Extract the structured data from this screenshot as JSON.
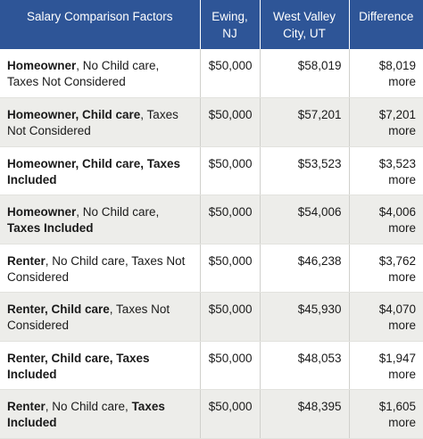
{
  "header": {
    "factors": "Salary Comparison Factors",
    "city1_line1": "Ewing,",
    "city1_line2": "NJ",
    "city2_line1": "West Valley",
    "city2_line2": "City, UT",
    "difference": "Difference"
  },
  "rows": [
    {
      "f1": "Homeowner",
      "f2": ", No Child care, Taxes Not Considered",
      "f2_bold": false,
      "f3": "",
      "f3_bold": false,
      "city1": "$50,000",
      "city2": "$58,019",
      "diff": "$8,019",
      "diff_word": "more"
    },
    {
      "f1": "Homeowner, Child care",
      "f2": ", Taxes Not Considered",
      "city1": "$50,000",
      "city2": "$57,201",
      "diff": "$7,201",
      "diff_word": "more"
    },
    {
      "f1": "Homeowner, Child care, Taxes Included",
      "f2": "",
      "city1": "$50,000",
      "city2": "$53,523",
      "diff": "$3,523",
      "diff_word": "more"
    },
    {
      "f1": "Homeowner",
      "f2": ", No Child care, ",
      "f3": "Taxes Included",
      "city1": "$50,000",
      "city2": "$54,006",
      "diff": "$4,006",
      "diff_word": "more"
    },
    {
      "f1": "Renter",
      "f2": ", No Child care, Taxes Not Considered",
      "city1": "$50,000",
      "city2": "$46,238",
      "diff": "$3,762",
      "diff_word": "more"
    },
    {
      "f1": "Renter, Child care",
      "f2": ", Taxes Not Considered",
      "city1": "$50,000",
      "city2": "$45,930",
      "diff": "$4,070",
      "diff_word": "more"
    },
    {
      "f1": "Renter, Child care, Taxes Included",
      "f2": "",
      "city1": "$50,000",
      "city2": "$48,053",
      "diff": "$1,947",
      "diff_word": "more"
    },
    {
      "f1": "Renter",
      "f2": ", No Child care, ",
      "f3": "Taxes Included",
      "city1": "$50,000",
      "city2": "$48,395",
      "diff": "$1,605",
      "diff_word": "more"
    }
  ],
  "colors": {
    "header_bg": "#2e5597",
    "header_text": "#ffffff",
    "stripe": "#ededea"
  }
}
